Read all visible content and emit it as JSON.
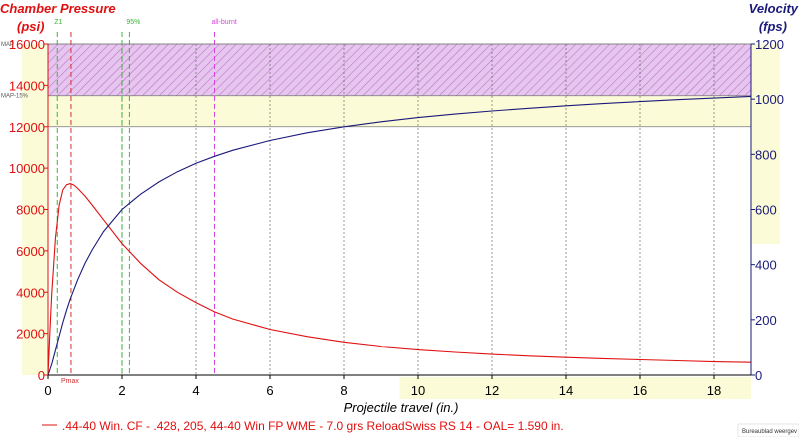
{
  "chart_data": {
    "type": "line",
    "left_axis_title_line1": "Chamber Pressure",
    "left_axis_title_line2": "(psi)",
    "right_axis_title_line1": "Velocity",
    "right_axis_title_line2": "(fps)",
    "xlabel": "Projectile travel (in.)",
    "xlim": [
      0,
      19
    ],
    "ylim_left": [
      0,
      16000
    ],
    "ylim_right": [
      0,
      1200
    ],
    "x_ticks": [
      0,
      2,
      4,
      6,
      8,
      10,
      12,
      14,
      16,
      18
    ],
    "y_left_ticks": [
      0,
      2000,
      4000,
      6000,
      8000,
      10000,
      12000,
      14000,
      16000
    ],
    "y_right_ticks": [
      0,
      200,
      400,
      600,
      800,
      1000,
      1200
    ],
    "bands": [
      {
        "label": "MAP",
        "from": 13500,
        "to": 16000,
        "color": "#e6c6ee"
      },
      {
        "label": "MAP-15%",
        "from": 12000,
        "to": 13500,
        "color": "#fbfbd8"
      }
    ],
    "band_lines": [
      {
        "label": "MAP",
        "y": 16000
      },
      {
        "label": "MAP-15%",
        "y": 13500
      },
      {
        "label": "",
        "y": 12000
      }
    ],
    "markers": [
      {
        "label": "Z1",
        "x": 0.25,
        "color": "#3cb43c"
      },
      {
        "label": "Pmax",
        "x": 0.62,
        "color": "#d23232"
      },
      {
        "label": "",
        "x": 2.0,
        "color": "#3cb43c"
      },
      {
        "label": "95%",
        "x": 2.2,
        "color": "#3cb43c"
      },
      {
        "label": "all-burnt",
        "x": 4.5,
        "color": "#d846d8"
      }
    ],
    "series": [
      {
        "name": ".44-40 Win. CF - .428, 205, 44-40 Win FP WME - 7.0 grs ReloadSwiss RS 14 - OAL= 1.590 in.",
        "axis": "left",
        "color": "#e01010",
        "x": [
          0,
          0.05,
          0.1,
          0.2,
          0.3,
          0.4,
          0.5,
          0.6,
          0.7,
          0.8,
          1.0,
          1.2,
          1.5,
          2.0,
          2.5,
          3.0,
          3.5,
          4.0,
          4.5,
          5.0,
          6.0,
          7.0,
          8.0,
          9.0,
          10.0,
          11.0,
          12.0,
          13.0,
          14.0,
          15.0,
          16.0,
          17.0,
          18.0,
          19.0
        ],
        "y": [
          0,
          2100,
          3900,
          6600,
          8200,
          8950,
          9200,
          9250,
          9180,
          9020,
          8650,
          8200,
          7500,
          6350,
          5400,
          4600,
          4000,
          3500,
          3050,
          2700,
          2200,
          1850,
          1580,
          1380,
          1230,
          1110,
          1010,
          930,
          860,
          800,
          750,
          700,
          650,
          620
        ]
      },
      {
        "name": "velocity",
        "axis": "right",
        "color": "#1a1a7a",
        "x": [
          0,
          0.1,
          0.2,
          0.3,
          0.4,
          0.5,
          0.6,
          0.8,
          1.0,
          1.2,
          1.5,
          2.0,
          2.5,
          3.0,
          3.5,
          4.0,
          4.5,
          5.0,
          6.0,
          7.0,
          8.0,
          9.0,
          10.0,
          11.0,
          12.0,
          13.0,
          14.0,
          15.0,
          16.0,
          17.0,
          18.0,
          19.0
        ],
        "y": [
          0,
          40,
          90,
          140,
          190,
          235,
          275,
          345,
          405,
          455,
          520,
          600,
          655,
          700,
          737,
          768,
          793,
          815,
          850,
          878,
          900,
          918,
          933,
          946,
          957,
          967,
          976,
          984,
          991,
          998,
          1004,
          1010
        ]
      }
    ],
    "left_axis_color": "#e01010",
    "right_axis_color": "#1a1a7a",
    "grid": true
  },
  "watermark": "Bureaublad weergev"
}
